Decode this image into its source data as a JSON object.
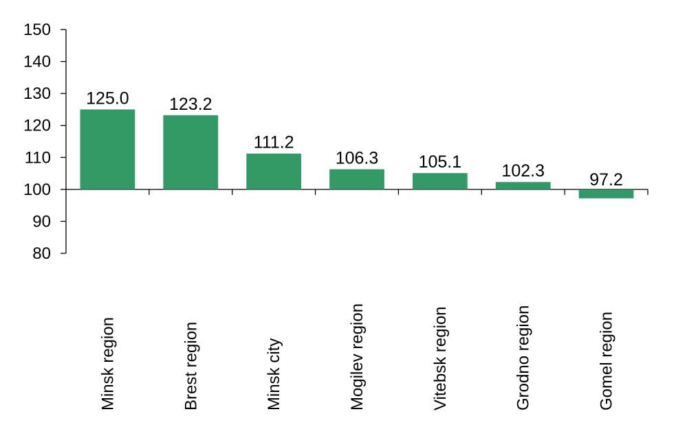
{
  "chart_data": {
    "type": "bar",
    "title": "",
    "xlabel": "",
    "ylabel": "",
    "categories": [
      "Minsk region",
      "Brest region",
      "Minsk city",
      "Mogilev region",
      "Vitebsk region",
      "Grodno region",
      "Gomel region"
    ],
    "values": [
      125.0,
      123.2,
      111.2,
      106.3,
      105.1,
      102.3,
      97.2
    ],
    "data_labels": [
      "125.0",
      "123.2",
      "111.2",
      "106.3",
      "105.1",
      "102.3",
      "97.2"
    ],
    "baseline": 100,
    "ylim": [
      80,
      150
    ],
    "yticks": [
      80,
      90,
      100,
      110,
      120,
      130,
      140,
      150
    ],
    "ytick_labels": [
      "80",
      "90",
      "100",
      "110",
      "120",
      "130",
      "140",
      "150"
    ],
    "legend": "none",
    "grid": false,
    "bar_color": "#339966"
  }
}
